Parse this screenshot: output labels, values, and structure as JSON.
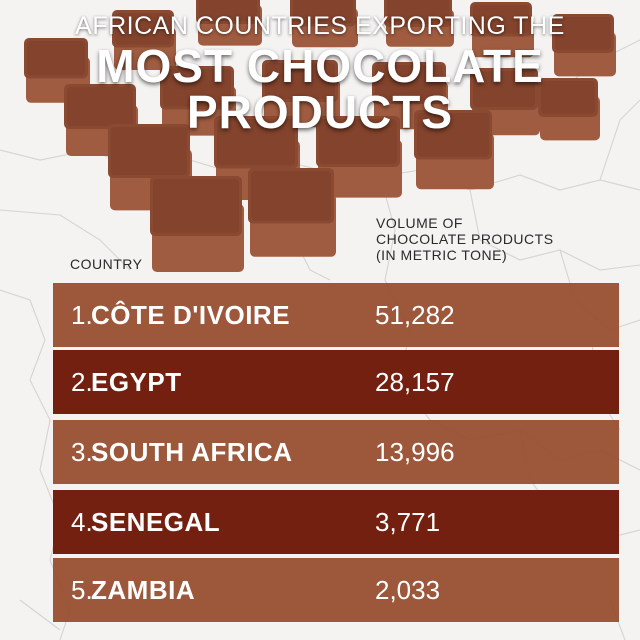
{
  "title": {
    "line1": "AFRICAN COUNTRIES EXPORTING THE",
    "line2": "MOST CHOCOLATE",
    "line3": "PRODUCTS"
  },
  "columns": {
    "country": "COUNTRY",
    "volume_line1": "VOLUME OF",
    "volume_line2": "CHOCOLATE PRODUCTS",
    "volume_line3": "(IN METRIC TONE)"
  },
  "rows": [
    {
      "rank": "1.",
      "country": "CÔTE D'IVOIRE",
      "value": "51,282"
    },
    {
      "rank": "2.",
      "country": "EGYPT",
      "value": "28,157"
    },
    {
      "rank": "3.",
      "country": "SOUTH AFRICA",
      "value": "13,996"
    },
    {
      "rank": "4.",
      "country": "SENEGAL",
      "value": "3,771"
    },
    {
      "rank": "5.",
      "country": "ZAMBIA",
      "value": "2,033"
    }
  ],
  "colors": {
    "row_light": "#984e30",
    "row_dark": "#701909",
    "chocolate_cube": "#8a4a32",
    "background": "#f4f3f2"
  },
  "decorations": {
    "background_map": "africa-outline-map",
    "hero_image": "chocolate-truffle-cubes"
  }
}
